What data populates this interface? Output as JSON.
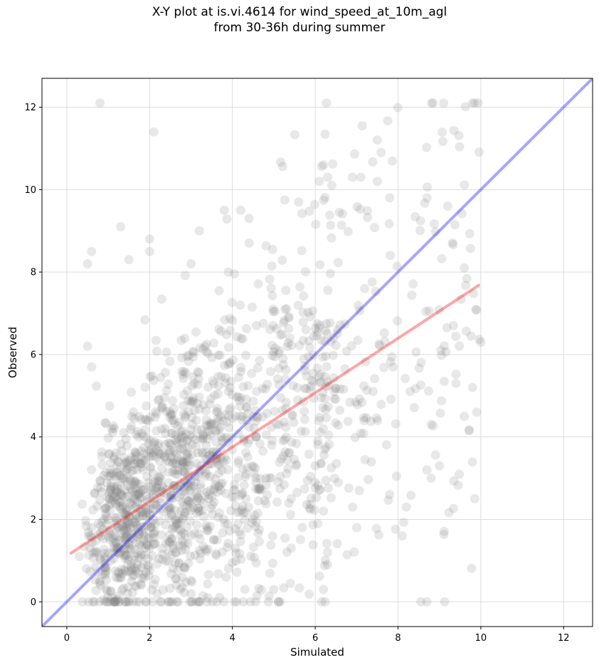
{
  "chart_data": {
    "type": "scatter",
    "title_line1": "X-Y plot at is.vi.4614 for wind_speed_at_10m_agl",
    "title_line2": "from 30-36h during summer",
    "xlabel": "Simulated",
    "ylabel": "Observed",
    "xlim": [
      -0.6,
      12.7
    ],
    "ylim": [
      -0.6,
      12.7
    ],
    "xticks": [
      0,
      2,
      4,
      6,
      8,
      10,
      12
    ],
    "yticks": [
      0,
      2,
      4,
      6,
      8,
      10,
      12
    ],
    "grid": true,
    "colors": {
      "points": "#808080",
      "identity_line": "#0000ff",
      "fit_line": "#ff0000"
    },
    "identity_line": {
      "x": [
        -0.6,
        12.7
      ],
      "y": [
        -0.6,
        12.7
      ]
    },
    "fit_line": {
      "x": [
        0.1,
        9.95
      ],
      "y": [
        1.18,
        7.68
      ]
    },
    "points_approx_count": 1600,
    "points_highlighted": [
      [
        0.8,
        12.1
      ],
      [
        2.1,
        11.4
      ],
      [
        7.5,
        11.2
      ],
      [
        6.2,
        10.6
      ],
      [
        6.3,
        10.3
      ],
      [
        6.9,
        10.3
      ],
      [
        7.1,
        10.3
      ],
      [
        6.1,
        10.2
      ],
      [
        7.5,
        10.2
      ],
      [
        6.4,
        10.1
      ],
      [
        7.8,
        9.8
      ],
      [
        8.7,
        9.8
      ],
      [
        3.8,
        9.5
      ],
      [
        4.2,
        9.5
      ],
      [
        9.2,
        9.6
      ],
      [
        5.6,
        9.7
      ],
      [
        1.3,
        9.1
      ],
      [
        4.4,
        9.3
      ],
      [
        3.2,
        9.0
      ],
      [
        0.6,
        8.5
      ],
      [
        0.5,
        8.2
      ],
      [
        1.5,
        8.3
      ],
      [
        2.0,
        8.8
      ],
      [
        2.0,
        8.5
      ],
      [
        9.6,
        8.1
      ],
      [
        10.0,
        6.3
      ],
      [
        9.4,
        5.3
      ],
      [
        9.8,
        5.2
      ],
      [
        9.9,
        4.6
      ],
      [
        9.6,
        4.5
      ],
      [
        8.8,
        4.3
      ],
      [
        0.6,
        5.7
      ],
      [
        0.5,
        6.2
      ],
      [
        0.3,
        1.1
      ],
      [
        6.2,
        0.3
      ],
      [
        5.0,
        0.3
      ],
      [
        4.3,
        0.3
      ],
      [
        3.4,
        0.1
      ],
      [
        8.1,
        1.6
      ],
      [
        8.2,
        2.3
      ],
      [
        7.0,
        1.8
      ],
      [
        7.8,
        2.6
      ],
      [
        9.0,
        3.3
      ],
      [
        8.8,
        3.0
      ],
      [
        8.7,
        3.2
      ],
      [
        6.0,
        3.3
      ],
      [
        6.3,
        1.2
      ],
      [
        6.2,
        2.2
      ],
      [
        3.0,
        8.2
      ],
      [
        3.9,
        8.0
      ]
    ]
  }
}
